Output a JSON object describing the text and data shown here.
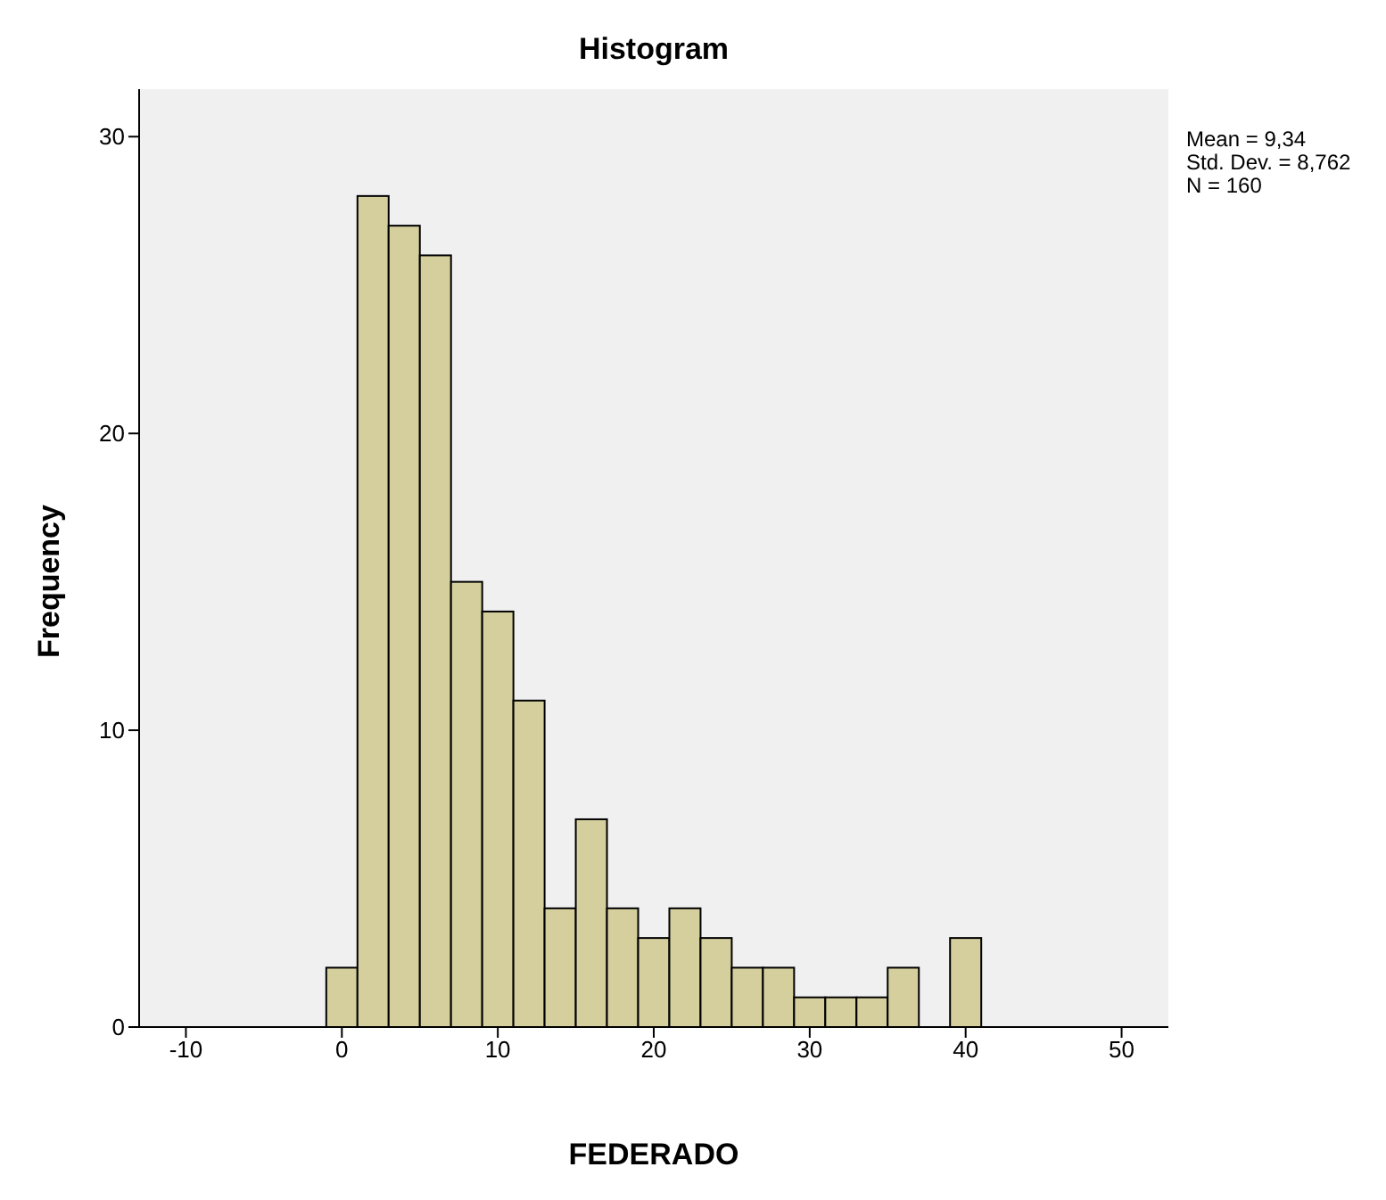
{
  "chart_data": {
    "type": "histogram",
    "title": "Histogram",
    "xlabel": "FEDERADO",
    "ylabel": "Frequency",
    "bins": [
      -1,
      1,
      3,
      5,
      7,
      9,
      11,
      13,
      15,
      17,
      19,
      21,
      23,
      25,
      27,
      29,
      31,
      33,
      35,
      37,
      39,
      41
    ],
    "values": [
      2,
      28,
      27,
      26,
      15,
      14,
      11,
      4,
      7,
      4,
      3,
      4,
      3,
      2,
      2,
      1,
      1,
      1,
      2,
      0,
      3
    ],
    "color": "#d4cf9c",
    "xlim": [
      -13,
      53
    ],
    "xticks": [
      -10,
      0,
      10,
      20,
      30,
      40,
      50
    ],
    "ylim": [
      0,
      31.6
    ],
    "yticks": [
      0,
      10,
      20,
      30
    ],
    "grid": false,
    "annotations": [
      "Mean = 9,34",
      "Std. Dev. = 8,762",
      "N = 160"
    ]
  }
}
